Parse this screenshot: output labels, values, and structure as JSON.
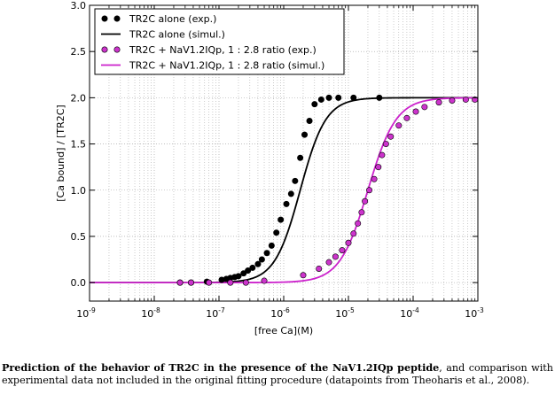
{
  "chart_data": {
    "type": "scatter",
    "title": "",
    "xlabel": "[free Ca](M)",
    "ylabel": "[Ca bound] / [TR2C]",
    "xscale": "log",
    "xlim": [
      1e-09,
      0.001
    ],
    "ylim": [
      -0.2,
      3.0
    ],
    "x_ticks": [
      {
        "base": "10",
        "exp": "-9"
      },
      {
        "base": "10",
        "exp": "-8"
      },
      {
        "base": "10",
        "exp": "-7"
      },
      {
        "base": "10",
        "exp": "-6"
      },
      {
        "base": "10",
        "exp": "-5"
      },
      {
        "base": "10",
        "exp": "-4"
      },
      {
        "base": "10",
        "exp": "-3"
      }
    ],
    "y_ticks": [
      "0.0",
      "0.5",
      "1.0",
      "1.5",
      "2.0",
      "2.5",
      "3.0"
    ],
    "grid": true,
    "legend_position": "top-left",
    "series": [
      {
        "name": "TR2C alone (exp.)",
        "kind": "markers",
        "color": "#000000",
        "x": [
          2.5e-08,
          3.7e-08,
          6.5e-08,
          1.1e-07,
          1.3e-07,
          1.5e-07,
          1.75e-07,
          2e-07,
          2.4e-07,
          2.8e-07,
          3.3e-07,
          4e-07,
          4.6e-07,
          5.5e-07,
          6.5e-07,
          7.7e-07,
          9e-07,
          1.1e-06,
          1.3e-06,
          1.5e-06,
          1.8e-06,
          2.1e-06,
          2.5e-06,
          3e-06,
          3.8e-06,
          5e-06,
          7e-06,
          1.2e-05,
          3e-05
        ],
        "y": [
          0.0,
          0.0,
          0.01,
          0.03,
          0.04,
          0.05,
          0.06,
          0.07,
          0.1,
          0.13,
          0.16,
          0.2,
          0.25,
          0.32,
          0.4,
          0.54,
          0.68,
          0.85,
          0.96,
          1.1,
          1.35,
          1.6,
          1.75,
          1.93,
          1.98,
          2.0,
          2.0,
          2.0,
          2.0
        ]
      },
      {
        "name": "TR2C alone (simul.)",
        "kind": "line",
        "color": "#000000",
        "ec50": 1.8e-06,
        "hill": 2.2,
        "ymax": 2.0
      },
      {
        "name": "TR2C + NaV1.2IQp, 1 : 2.8 ratio (exp.)",
        "kind": "markers",
        "color": "#cc33cc",
        "x": [
          2.5e-08,
          3.7e-08,
          7e-08,
          1.5e-07,
          2.6e-07,
          5e-07,
          2e-06,
          3.5e-06,
          5e-06,
          6.3e-06,
          8e-06,
          1e-05,
          1.2e-05,
          1.4e-05,
          1.6e-05,
          1.8e-05,
          2.1e-05,
          2.5e-05,
          2.9e-05,
          3.3e-05,
          3.8e-05,
          4.5e-05,
          6e-05,
          8e-05,
          0.00011,
          0.00015,
          0.00025,
          0.0004,
          0.00065,
          0.0009
        ],
        "y": [
          0.0,
          0.0,
          0.0,
          0.0,
          0.0,
          0.02,
          0.08,
          0.15,
          0.22,
          0.28,
          0.35,
          0.43,
          0.53,
          0.64,
          0.76,
          0.88,
          1.0,
          1.12,
          1.25,
          1.38,
          1.5,
          1.58,
          1.7,
          1.78,
          1.85,
          1.9,
          1.95,
          1.97,
          1.98,
          1.98
        ]
      },
      {
        "name": "TR2C + NaV1.2IQp, 1 : 2.8 ratio (simul.)",
        "kind": "line",
        "color": "#cc22cc",
        "ec50": 2e-05,
        "hill": 2.0,
        "ymax": 2.0
      }
    ]
  },
  "caption": {
    "bold": "Prediction of the behavior of TR2C in the presence of the NaV1.2IQp peptide",
    "rest": ", and comparison with experimental data not included in the original fitting procedure (datapoints from Theoharis et al., 2008)."
  }
}
